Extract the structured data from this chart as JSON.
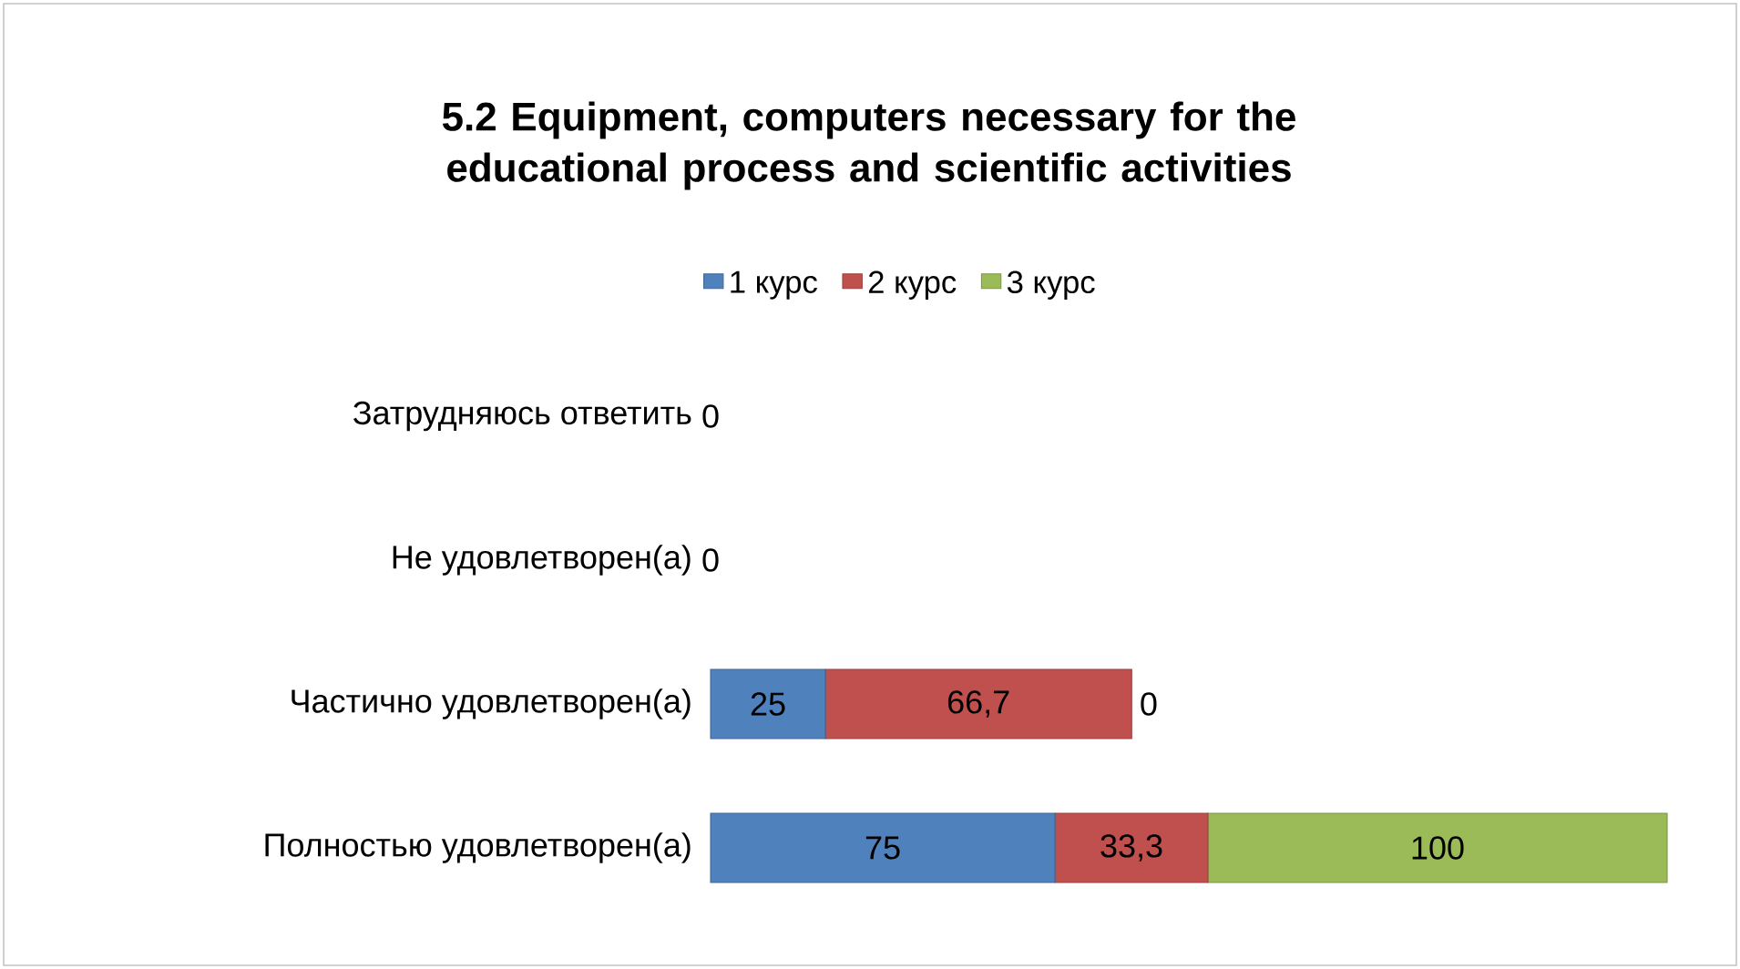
{
  "chart_data": {
    "type": "bar",
    "orientation": "horizontal",
    "stacked": true,
    "legend": "top",
    "title": "5.2 Equipment, computers necessary for the educational process and scientific activities",
    "categories": [
      "Затрудняюсь ответить",
      "Не удовлетворен(а)",
      "Частично удовлетворен(а)",
      "Полностью удовлетворен(а)"
    ],
    "series": [
      {
        "name": "1 курс",
        "color": "#4f81bd",
        "values": [
          0,
          0,
          25,
          75
        ],
        "value_labels": [
          null,
          null,
          "25",
          "75"
        ]
      },
      {
        "name": "2 курс",
        "color": "#c0504d",
        "values": [
          0,
          0,
          66.7,
          33.3
        ],
        "value_labels": [
          null,
          null,
          "66,7",
          "33,3"
        ]
      },
      {
        "name": "3 курс",
        "color": "#9bbb59",
        "values": [
          0,
          0,
          0,
          100
        ],
        "value_labels": [
          "0",
          "0",
          "0",
          "100"
        ]
      }
    ]
  }
}
